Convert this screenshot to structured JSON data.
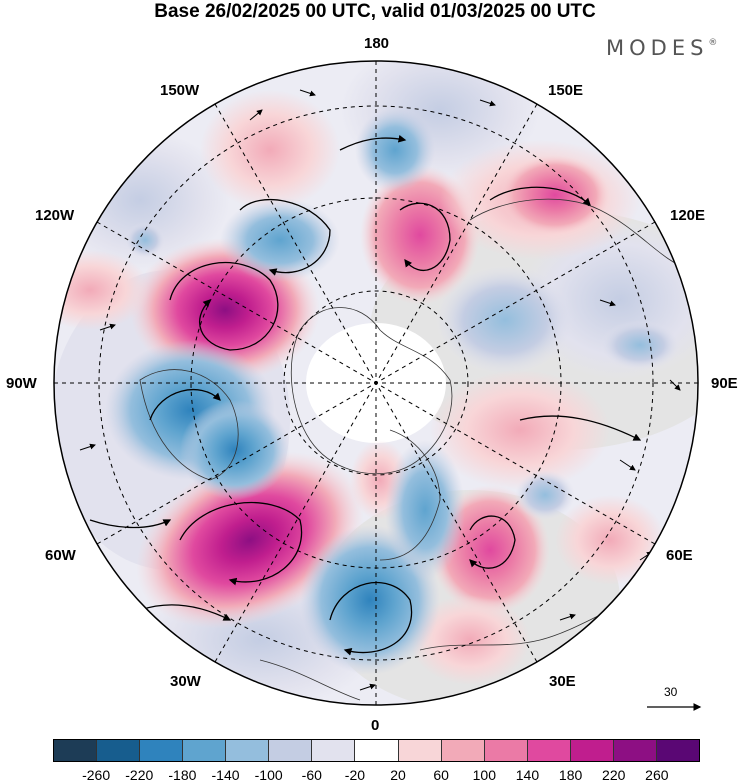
{
  "title": "Base 26/02/2025 00 UTC, valid 01/03/2025 00 UTC",
  "brand": "MODES",
  "brand_mark": "®",
  "longitude_labels": {
    "north": "180",
    "south": "0",
    "west": "90W",
    "east": "90E",
    "nnw": "150W",
    "nne": "150E",
    "wnw": "120W",
    "ene": "120E",
    "wsw": "60W",
    "ese": "60E",
    "ssw": "30W",
    "sse": "30E"
  },
  "reference_vector": {
    "value": "30"
  },
  "colorbar": {
    "colors": [
      "#1d3c56",
      "#175d8e",
      "#2f83bd",
      "#5fa4cf",
      "#94bedd",
      "#c4cde3",
      "#e2e2ee",
      "#ffffff",
      "#f8d6d8",
      "#f2aab8",
      "#eb7aa6",
      "#e0499f",
      "#c01e8e",
      "#8d0f83",
      "#5a0774"
    ],
    "ticks": [
      "-260",
      "-220",
      "-180",
      "-140",
      "-100",
      "-60",
      "-20",
      "20",
      "60",
      "100",
      "140",
      "180",
      "220",
      "260"
    ]
  },
  "colors": {
    "land_gray": "#e4e4e4",
    "ocean": "#ffffff",
    "coast": "#333333"
  }
}
